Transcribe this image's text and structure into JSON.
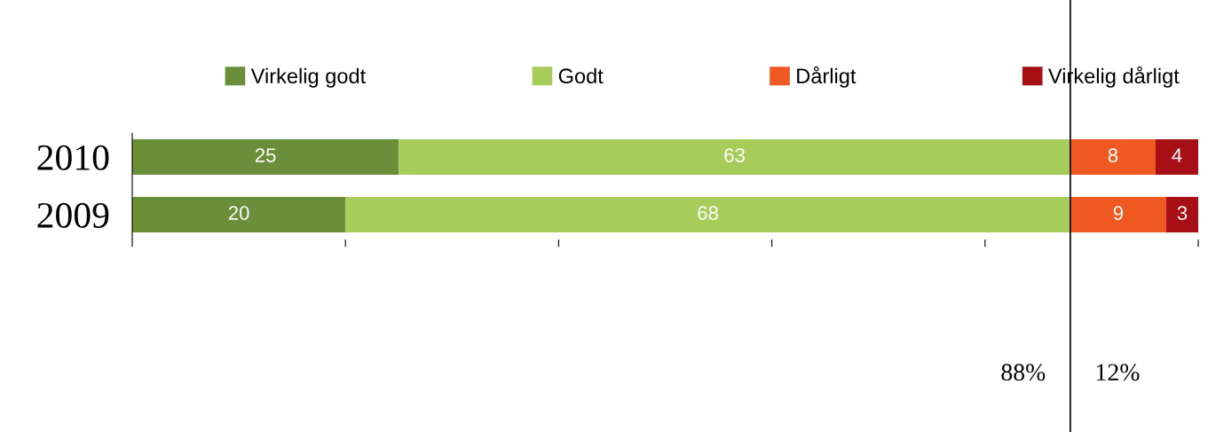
{
  "chart_data": {
    "type": "bar",
    "orientation": "horizontal",
    "stacked": true,
    "categories": [
      "2010",
      "2009"
    ],
    "series": [
      {
        "name": "Virkelig godt",
        "color": "#6b8e3a",
        "values": [
          25,
          20
        ]
      },
      {
        "name": "Godt",
        "color": "#a6cc5a",
        "values": [
          63,
          68
        ]
      },
      {
        "name": "Dårligt",
        "color": "#f05a22",
        "values": [
          8,
          9
        ]
      },
      {
        "name": "Virkelig dårligt",
        "color": "#a50f15",
        "values": [
          4,
          3
        ]
      }
    ],
    "xlim": [
      0,
      100
    ],
    "xticks": [
      {
        "value": 0,
        "label": null
      },
      {
        "value": 20,
        "label": null
      },
      {
        "value": 40,
        "label": null
      },
      {
        "value": 60,
        "label": null
      },
      {
        "value": 80,
        "label": null
      },
      {
        "value": 100,
        "label": null
      }
    ],
    "tick_labels": "y",
    "data_labels": true,
    "legend": "top",
    "grid": false,
    "ref_lines": [
      {
        "axis": "x",
        "value": 88,
        "color": "#000000"
      }
    ],
    "annotations": [
      "88%",
      "12%"
    ]
  }
}
